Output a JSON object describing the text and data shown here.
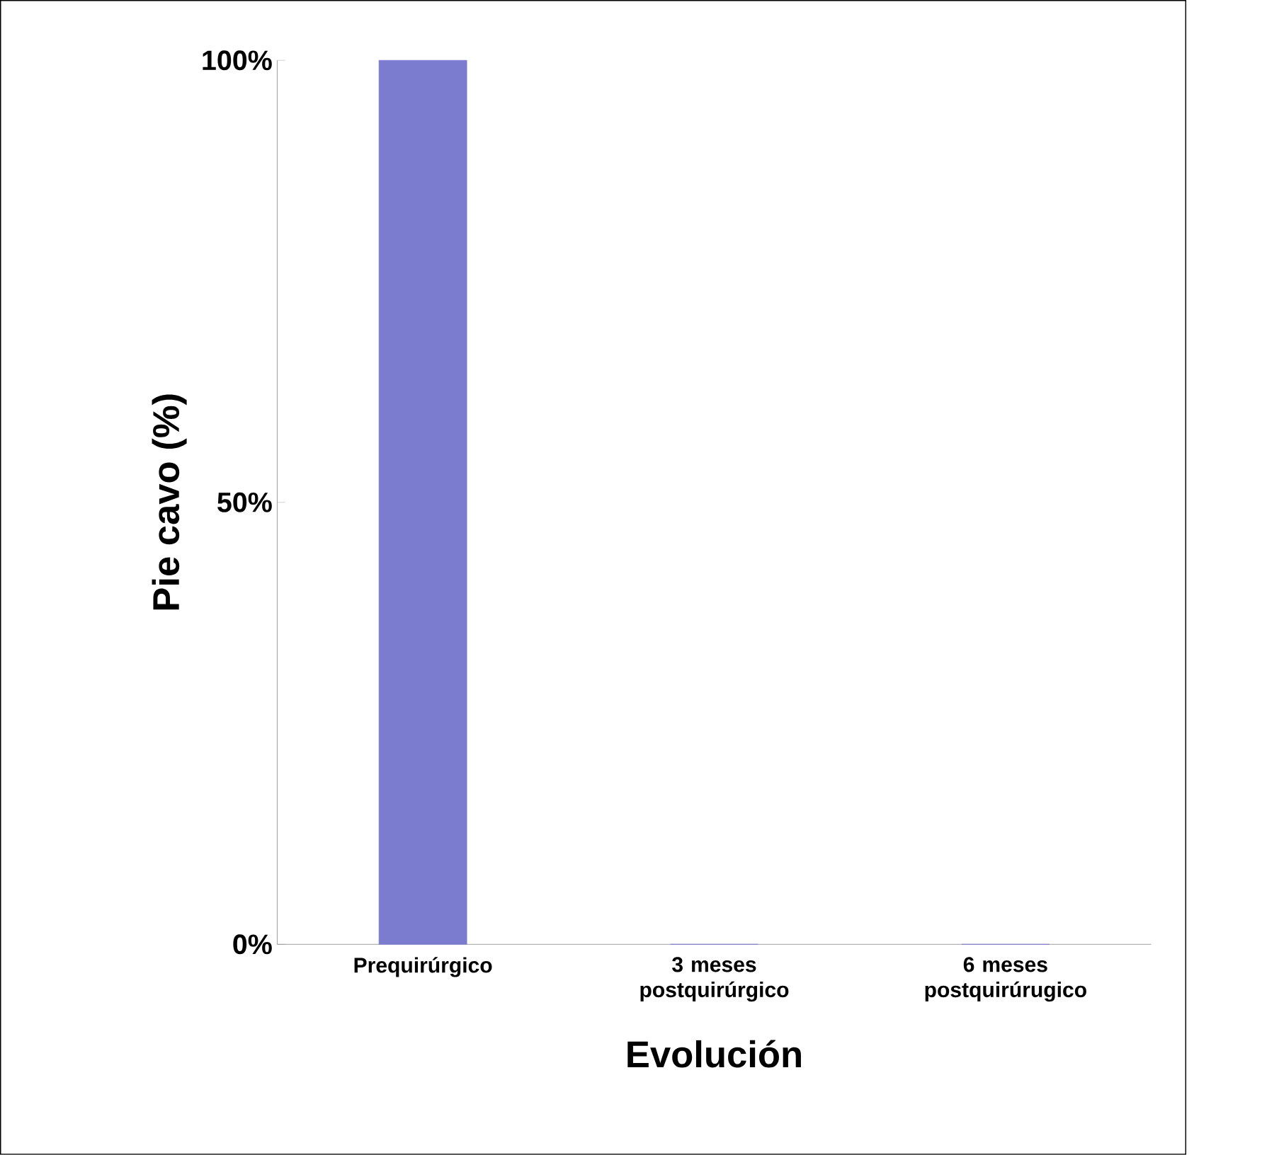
{
  "chart_data": {
    "type": "bar",
    "xlabel": "Evolución",
    "ylabel": "Pie cavo (%)",
    "categories": [
      "Prequirúrgico",
      "3 meses postquirúrgico",
      "6 meses postquirúrugico"
    ],
    "values": [
      100,
      0,
      0
    ],
    "color": "#7b7bd0",
    "ylim": [
      0,
      100
    ],
    "yticks": [
      {
        "value": 0,
        "label": "0%"
      },
      {
        "value": 50,
        "label": "50%"
      },
      {
        "value": 100,
        "label": "100%"
      }
    ],
    "grid": false
  }
}
